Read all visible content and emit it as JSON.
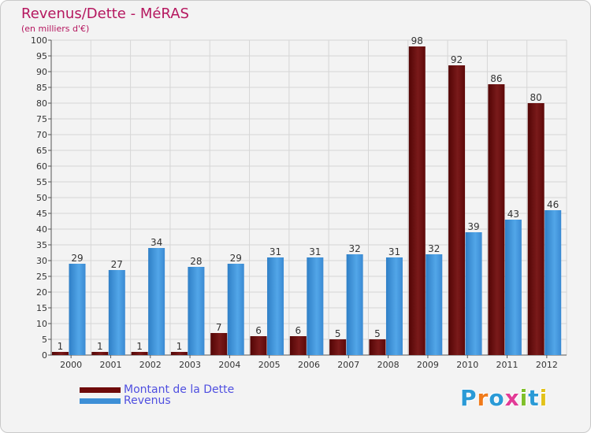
{
  "chart_data": {
    "type": "bar",
    "title": "Revenus/Dette - MéRAS",
    "subtitle": "(en milliers d'€)",
    "categories": [
      "2000",
      "2001",
      "2002",
      "2003",
      "2004",
      "2005",
      "2006",
      "2007",
      "2008",
      "2009",
      "2010",
      "2011",
      "2012"
    ],
    "series": [
      {
        "name": "Montant de la Dette",
        "color": "#6e0a0a",
        "values": [
          1,
          1,
          1,
          1,
          7,
          6,
          6,
          5,
          5,
          98,
          92,
          86,
          80
        ]
      },
      {
        "name": "Revenus",
        "color": "#3d8fd6",
        "values": [
          29,
          27,
          34,
          28,
          29,
          31,
          31,
          32,
          31,
          32,
          39,
          43,
          46
        ]
      }
    ],
    "ylim": [
      0,
      100
    ],
    "ytick_step": 5,
    "grid": true,
    "legend_position": "bottom-left",
    "xlabel": "",
    "ylabel": ""
  },
  "logo": {
    "text": "Proxiti",
    "colors": [
      "#2a9ad6",
      "#f07a1a",
      "#2a9ad6",
      "#e23b96",
      "#7fbf2a",
      "#2a9ad6",
      "#e2c21a"
    ]
  }
}
